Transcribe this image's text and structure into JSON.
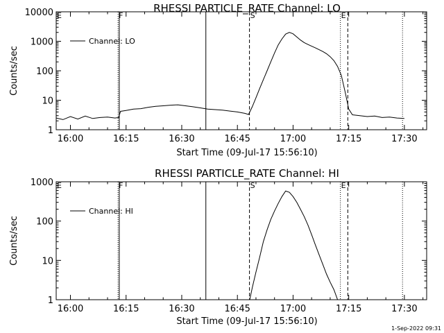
{
  "colors": {
    "background": "#ffffff",
    "foreground": "#000000"
  },
  "timestamp": "1-Sep-2022 09:31",
  "chart_data": [
    {
      "type": "line",
      "title": "RHESSI PARTICLE_RATE Channel: LO",
      "xlabel": "Start Time (09-Jul-17 15:56:10)",
      "ylabel": "Counts/sec",
      "yscale": "log",
      "ylim": [
        1,
        10000
      ],
      "y_ticks": [
        "1",
        "10",
        "100",
        "1000",
        "10000"
      ],
      "x_ticks": [
        "16:00",
        "16:15",
        "16:30",
        "16:45",
        "17:00",
        "17:15",
        "17:30"
      ],
      "xlim": [
        "15:56:10",
        "17:36:00"
      ],
      "legend": {
        "position": "top-left",
        "label": "Channel: LO"
      },
      "markers": [
        {
          "time": "16:12:50",
          "style": "dotted",
          "label": "F"
        },
        {
          "time": "16:13:10",
          "style": "solid",
          "label": ""
        },
        {
          "time": "16:36:30",
          "style": "solid",
          "label": ""
        },
        {
          "time": "16:48:15",
          "style": "dashed",
          "label": "S"
        },
        {
          "time": "17:12:45",
          "style": "dotted",
          "label": "E"
        },
        {
          "time": "17:14:45",
          "style": "dashed",
          "label": ""
        },
        {
          "time": "17:29:30",
          "style": "dotted",
          "label": ""
        }
      ],
      "series": [
        {
          "name": "Channel: LO",
          "points": [
            [
              "15:56:10",
              2.5
            ],
            [
              "15:58",
              2.2
            ],
            [
              "16:00",
              2.8
            ],
            [
              "16:02",
              2.3
            ],
            [
              "16:04",
              2.9
            ],
            [
              "16:06",
              2.4
            ],
            [
              "16:08",
              2.6
            ],
            [
              "16:10",
              2.7
            ],
            [
              "16:12",
              2.5
            ],
            [
              "16:13",
              2.6
            ],
            [
              "16:13:30",
              4.2
            ],
            [
              "16:15",
              4.5
            ],
            [
              "16:17",
              5.0
            ],
            [
              "16:19",
              5.2
            ],
            [
              "16:21",
              5.8
            ],
            [
              "16:23",
              6.2
            ],
            [
              "16:25",
              6.5
            ],
            [
              "16:27",
              6.8
            ],
            [
              "16:29",
              7.0
            ],
            [
              "16:31",
              6.5
            ],
            [
              "16:33",
              6.0
            ],
            [
              "16:35",
              5.5
            ],
            [
              "16:37",
              5.0
            ],
            [
              "16:39",
              4.8
            ],
            [
              "16:41",
              4.6
            ],
            [
              "16:43",
              4.3
            ],
            [
              "16:45",
              4.0
            ],
            [
              "16:47",
              3.6
            ],
            [
              "16:48",
              3.3
            ],
            [
              "16:49",
              6
            ],
            [
              "16:50",
              12
            ],
            [
              "16:51",
              25
            ],
            [
              "16:52",
              50
            ],
            [
              "16:53",
              100
            ],
            [
              "16:54",
              200
            ],
            [
              "16:55",
              400
            ],
            [
              "16:56",
              750
            ],
            [
              "16:57",
              1200
            ],
            [
              "16:58",
              1750
            ],
            [
              "16:59",
              2000
            ],
            [
              "17:00",
              1800
            ],
            [
              "17:01",
              1400
            ],
            [
              "17:02",
              1100
            ],
            [
              "17:03",
              900
            ],
            [
              "17:04",
              780
            ],
            [
              "17:05",
              680
            ],
            [
              "17:06",
              600
            ],
            [
              "17:07",
              520
            ],
            [
              "17:08",
              450
            ],
            [
              "17:09",
              380
            ],
            [
              "17:10",
              300
            ],
            [
              "17:11",
              220
            ],
            [
              "17:12",
              140
            ],
            [
              "17:13",
              70
            ],
            [
              "17:14",
              20
            ],
            [
              "17:15",
              5
            ],
            [
              "17:16",
              3.2
            ],
            [
              "17:18",
              3.0
            ],
            [
              "17:20",
              2.8
            ],
            [
              "17:22",
              2.9
            ],
            [
              "17:24",
              2.6
            ],
            [
              "17:26",
              2.7
            ],
            [
              "17:28",
              2.5
            ],
            [
              "17:30",
              2.4
            ]
          ]
        }
      ]
    },
    {
      "type": "line",
      "title": "RHESSI PARTICLE_RATE Channel: HI",
      "xlabel": "Start Time (09-Jul-17 15:56:10)",
      "ylabel": "Counts/sec",
      "yscale": "log",
      "ylim": [
        1,
        1000
      ],
      "y_ticks": [
        "1",
        "10",
        "100",
        "1000"
      ],
      "x_ticks": [
        "16:00",
        "16:15",
        "16:30",
        "16:45",
        "17:00",
        "17:15",
        "17:30"
      ],
      "xlim": [
        "15:56:10",
        "17:36:00"
      ],
      "legend": {
        "position": "top-left",
        "label": "Channel: HI"
      },
      "markers": [
        {
          "time": "16:12:50",
          "style": "dotted",
          "label": "F"
        },
        {
          "time": "16:13:10",
          "style": "solid",
          "label": ""
        },
        {
          "time": "16:36:30",
          "style": "solid",
          "label": ""
        },
        {
          "time": "16:48:15",
          "style": "dashed",
          "label": "S"
        },
        {
          "time": "17:12:45",
          "style": "dotted",
          "label": "E"
        },
        {
          "time": "17:14:45",
          "style": "dashed",
          "label": ""
        },
        {
          "time": "17:29:30",
          "style": "dotted",
          "label": ""
        }
      ],
      "series": [
        {
          "name": "Channel: HI",
          "points": [
            [
              "16:48:20",
              1.0
            ],
            [
              "16:49",
              2
            ],
            [
              "16:50",
              5
            ],
            [
              "16:51",
              12
            ],
            [
              "16:52",
              30
            ],
            [
              "16:53",
              60
            ],
            [
              "16:54",
              110
            ],
            [
              "16:55",
              180
            ],
            [
              "16:56",
              280
            ],
            [
              "16:57",
              420
            ],
            [
              "16:58",
              580
            ],
            [
              "16:59",
              540
            ],
            [
              "17:00",
              420
            ],
            [
              "17:01",
              300
            ],
            [
              "17:02",
              200
            ],
            [
              "17:03",
              130
            ],
            [
              "17:04",
              80
            ],
            [
              "17:05",
              45
            ],
            [
              "17:06",
              25
            ],
            [
              "17:07",
              14
            ],
            [
              "17:08",
              8
            ],
            [
              "17:09",
              4.5
            ],
            [
              "17:10",
              2.8
            ],
            [
              "17:11",
              1.8
            ],
            [
              "17:12",
              1.0
            ]
          ]
        }
      ]
    }
  ]
}
